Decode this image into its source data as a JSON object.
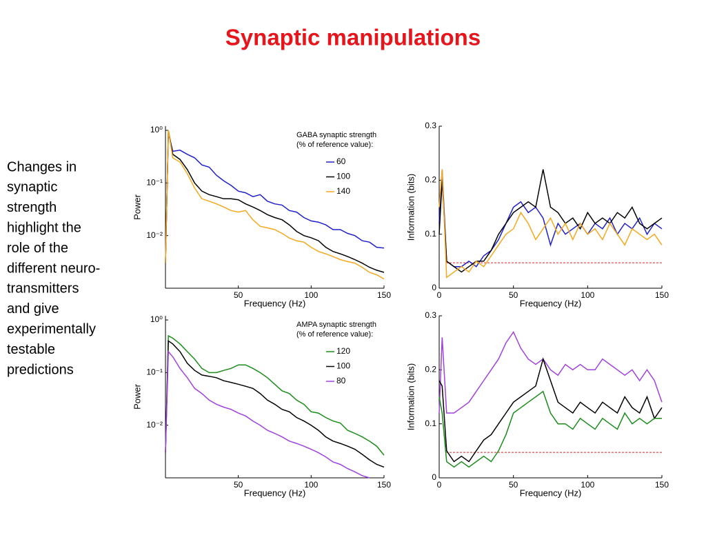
{
  "title": "Synaptic manipulations",
  "body": [
    "Changes in",
    "synaptic",
    "strength",
    "highlight the",
    "role of the",
    "different neuro-",
    "transmitters",
    "and give",
    "experimentally",
    "testable",
    "predictions"
  ],
  "chart_data": [
    {
      "type": "line",
      "log": true,
      "ylabel": "Power",
      "xlabel": "Frequency (Hz)",
      "legend_title": [
        "GABA synaptic strength",
        "(% of reference value):"
      ],
      "xlim": [
        0,
        150
      ],
      "xticks": [
        50,
        100,
        150
      ],
      "ylim": [
        0.001,
        1.2
      ],
      "yticks": [
        {
          "value": 1,
          "label": "10⁰"
        },
        {
          "value": 0.1,
          "label": "10⁻¹"
        },
        {
          "value": 0.01,
          "label": "10⁻²"
        }
      ],
      "x": [
        0,
        2,
        5,
        10,
        15,
        20,
        25,
        30,
        35,
        40,
        45,
        50,
        55,
        60,
        65,
        70,
        75,
        80,
        85,
        90,
        95,
        100,
        105,
        110,
        115,
        120,
        125,
        130,
        135,
        140,
        145,
        150
      ],
      "series": [
        {
          "name": "60",
          "color": "#1f1fd0",
          "values": [
            0.003,
            0.9,
            0.4,
            0.42,
            0.35,
            0.3,
            0.22,
            0.2,
            0.14,
            0.11,
            0.09,
            0.07,
            0.065,
            0.055,
            0.06,
            0.045,
            0.04,
            0.038,
            0.03,
            0.028,
            0.022,
            0.019,
            0.018,
            0.016,
            0.013,
            0.013,
            0.011,
            0.01,
            0.008,
            0.0075,
            0.006,
            0.0058
          ]
        },
        {
          "name": "100",
          "color": "#000000",
          "values": [
            0.003,
            1.0,
            0.35,
            0.28,
            0.18,
            0.1,
            0.07,
            0.06,
            0.055,
            0.05,
            0.05,
            0.048,
            0.04,
            0.035,
            0.03,
            0.025,
            0.022,
            0.02,
            0.016,
            0.012,
            0.01,
            0.0091,
            0.008,
            0.006,
            0.005,
            0.0045,
            0.004,
            0.0035,
            0.003,
            0.0025,
            0.0022,
            0.002
          ]
        },
        {
          "name": "140",
          "color": "#f5a81c",
          "values": [
            0.003,
            1.0,
            0.3,
            0.25,
            0.15,
            0.08,
            0.05,
            0.045,
            0.04,
            0.035,
            0.03,
            0.028,
            0.03,
            0.02,
            0.015,
            0.014,
            0.013,
            0.011,
            0.009,
            0.008,
            0.0075,
            0.006,
            0.005,
            0.0045,
            0.004,
            0.0035,
            0.0032,
            0.003,
            0.0025,
            0.002,
            0.0018,
            0.0015
          ]
        }
      ]
    },
    {
      "type": "line",
      "ylabel": "Information (bits)",
      "xlabel": "Frequency (Hz)",
      "xlim": [
        0,
        150
      ],
      "xticks": [
        0,
        50,
        100,
        150
      ],
      "ylim": [
        0,
        0.3
      ],
      "yticks": [
        0,
        0.1,
        0.2,
        0.3
      ],
      "threshold": 0.047,
      "threshold_color": "#e02020",
      "x": [
        0,
        2,
        5,
        10,
        15,
        20,
        25,
        30,
        35,
        40,
        45,
        50,
        55,
        60,
        65,
        70,
        75,
        80,
        85,
        90,
        95,
        100,
        105,
        110,
        115,
        120,
        125,
        130,
        135,
        140,
        145,
        150
      ],
      "series": [
        {
          "color": "#1f1fd0",
          "values": [
            0.12,
            0.22,
            0.05,
            0.04,
            0.04,
            0.05,
            0.04,
            0.06,
            0.07,
            0.09,
            0.12,
            0.15,
            0.16,
            0.14,
            0.15,
            0.13,
            0.08,
            0.12,
            0.1,
            0.11,
            0.12,
            0.1,
            0.12,
            0.11,
            0.13,
            0.1,
            0.12,
            0.11,
            0.13,
            0.1,
            0.12,
            0.11
          ]
        },
        {
          "color": "#000000",
          "values": [
            0.1,
            0.2,
            0.05,
            0.04,
            0.03,
            0.04,
            0.05,
            0.05,
            0.07,
            0.1,
            0.12,
            0.14,
            0.15,
            0.16,
            0.15,
            0.22,
            0.15,
            0.14,
            0.12,
            0.13,
            0.11,
            0.14,
            0.12,
            0.13,
            0.12,
            0.14,
            0.13,
            0.15,
            0.12,
            0.11,
            0.12,
            0.13
          ]
        },
        {
          "color": "#f5a81c",
          "values": [
            0.15,
            0.22,
            0.02,
            0.03,
            0.04,
            0.03,
            0.05,
            0.04,
            0.06,
            0.08,
            0.1,
            0.11,
            0.14,
            0.12,
            0.09,
            0.11,
            0.13,
            0.1,
            0.12,
            0.09,
            0.12,
            0.1,
            0.11,
            0.09,
            0.12,
            0.1,
            0.08,
            0.11,
            0.1,
            0.09,
            0.1,
            0.08
          ]
        }
      ]
    },
    {
      "type": "line",
      "log": true,
      "ylabel": "Power",
      "xlabel": "Frequency (Hz)",
      "legend_title": [
        "AMPA synaptic strength",
        "(% of reference value):"
      ],
      "xlim": [
        0,
        150
      ],
      "xticks": [
        50,
        100,
        150
      ],
      "ylim": [
        0.001,
        1.2
      ],
      "yticks": [
        {
          "value": 1,
          "label": "10⁰"
        },
        {
          "value": 0.1,
          "label": "10⁻¹"
        },
        {
          "value": 0.01,
          "label": "10⁻²"
        }
      ],
      "x": [
        0,
        2,
        5,
        10,
        15,
        20,
        25,
        30,
        35,
        40,
        45,
        50,
        55,
        60,
        65,
        70,
        75,
        80,
        85,
        90,
        95,
        100,
        105,
        110,
        115,
        120,
        125,
        130,
        135,
        140,
        145,
        150
      ],
      "series": [
        {
          "name": "120",
          "color": "#1a8c1a",
          "values": [
            0.003,
            0.5,
            0.45,
            0.35,
            0.25,
            0.18,
            0.12,
            0.1,
            0.1,
            0.11,
            0.12,
            0.14,
            0.14,
            0.12,
            0.1,
            0.08,
            0.06,
            0.045,
            0.04,
            0.03,
            0.025,
            0.018,
            0.017,
            0.014,
            0.012,
            0.011,
            0.008,
            0.007,
            0.006,
            0.005,
            0.004,
            0.0027
          ]
        },
        {
          "name": "100",
          "color": "#000000",
          "values": [
            0.003,
            0.4,
            0.35,
            0.25,
            0.15,
            0.11,
            0.09,
            0.085,
            0.08,
            0.07,
            0.065,
            0.06,
            0.055,
            0.05,
            0.04,
            0.03,
            0.025,
            0.02,
            0.018,
            0.014,
            0.012,
            0.01,
            0.008,
            0.006,
            0.005,
            0.0045,
            0.004,
            0.0035,
            0.0028,
            0.0022,
            0.0018,
            0.0016
          ]
        },
        {
          "name": "80",
          "color": "#a040e0",
          "values": [
            0.003,
            0.25,
            0.2,
            0.12,
            0.08,
            0.05,
            0.04,
            0.03,
            0.025,
            0.022,
            0.02,
            0.017,
            0.015,
            0.012,
            0.01,
            0.008,
            0.007,
            0.006,
            0.005,
            0.0045,
            0.004,
            0.0035,
            0.003,
            0.0025,
            0.002,
            0.0018,
            0.0015,
            0.0013,
            0.0011,
            0.001,
            null,
            null
          ]
        }
      ]
    },
    {
      "type": "line",
      "ylabel": "Information (bits)",
      "xlabel": "Frequency (Hz)",
      "xlim": [
        0,
        150
      ],
      "xticks": [
        0,
        50,
        100,
        150
      ],
      "ylim": [
        0,
        0.3
      ],
      "yticks": [
        0,
        0.1,
        0.2,
        0.3
      ],
      "threshold": 0.047,
      "threshold_color": "#e02020",
      "x": [
        0,
        2,
        5,
        10,
        15,
        20,
        25,
        30,
        35,
        40,
        45,
        50,
        55,
        60,
        65,
        70,
        75,
        80,
        85,
        90,
        95,
        100,
        105,
        110,
        115,
        120,
        125,
        130,
        135,
        140,
        145,
        150
      ],
      "series": [
        {
          "color": "#a040e0",
          "values": [
            0.12,
            0.26,
            0.12,
            0.12,
            0.13,
            0.14,
            0.16,
            0.18,
            0.2,
            0.22,
            0.25,
            0.27,
            0.24,
            0.22,
            0.21,
            0.22,
            0.2,
            0.19,
            0.21,
            0.2,
            0.21,
            0.2,
            0.2,
            0.22,
            0.21,
            0.2,
            0.19,
            0.2,
            0.18,
            0.2,
            0.18,
            0.14
          ]
        },
        {
          "color": "#000000",
          "values": [
            0.18,
            0.17,
            0.05,
            0.03,
            0.04,
            0.03,
            0.05,
            0.07,
            0.08,
            0.1,
            0.12,
            0.14,
            0.15,
            0.16,
            0.17,
            0.22,
            0.18,
            0.14,
            0.13,
            0.12,
            0.14,
            0.13,
            0.12,
            0.14,
            0.13,
            0.12,
            0.15,
            0.13,
            0.12,
            0.15,
            0.11,
            0.13
          ]
        },
        {
          "color": "#1a8c1a",
          "values": [
            0.15,
            0.12,
            0.03,
            0.02,
            0.03,
            0.02,
            0.03,
            0.04,
            0.03,
            0.05,
            0.08,
            0.12,
            0.13,
            0.14,
            0.15,
            0.16,
            0.12,
            0.1,
            0.1,
            0.09,
            0.11,
            0.1,
            0.09,
            0.11,
            0.1,
            0.09,
            0.12,
            0.1,
            0.11,
            0.1,
            0.11,
            0.11
          ]
        }
      ]
    }
  ]
}
